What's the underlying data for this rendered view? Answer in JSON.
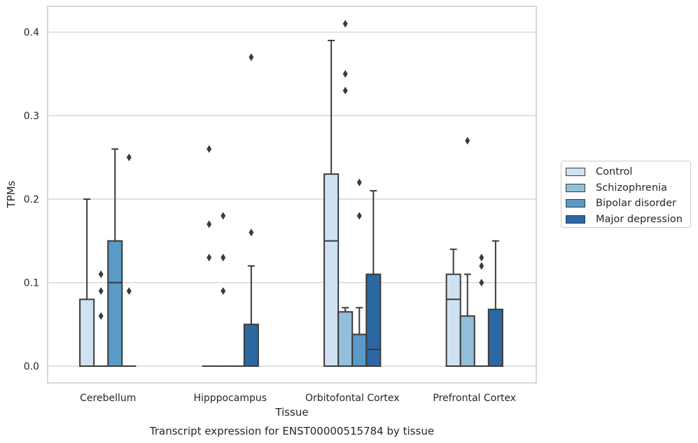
{
  "chart_data": {
    "type": "box",
    "title": "Transcript expression for ENST00000515784 by tissue",
    "xlabel": "Tissue",
    "ylabel": "TPMs",
    "ylim": [
      -0.02,
      0.43
    ],
    "yticks": [
      0.0,
      0.1,
      0.2,
      0.3,
      0.4
    ],
    "ytick_labels": [
      "0.0",
      "0.1",
      "0.2",
      "0.3",
      "0.4"
    ],
    "grid": "horizontal",
    "legend_position": "right",
    "categories": [
      "Cerebellum",
      "Hipppocampus",
      "Orbitofontal Cortex",
      "Prefrontal Cortex"
    ],
    "series": [
      {
        "name": "Control",
        "color": "#d0e1f1",
        "boxes": [
          {
            "q1": 0.0,
            "median": 0.0,
            "q3": 0.08,
            "whisker_low": 0.0,
            "whisker_high": 0.2,
            "outliers": []
          },
          {
            "q1": 0.0,
            "median": 0.0,
            "q3": 0.0,
            "whisker_low": 0.0,
            "whisker_high": 0.0,
            "outliers": [
              0.13,
              0.17,
              0.26
            ]
          },
          {
            "q1": 0.0,
            "median": 0.15,
            "q3": 0.23,
            "whisker_low": 0.0,
            "whisker_high": 0.39,
            "outliers": []
          },
          {
            "q1": 0.0,
            "median": 0.08,
            "q3": 0.11,
            "whisker_low": 0.0,
            "whisker_high": 0.14,
            "outliers": []
          }
        ]
      },
      {
        "name": "Schizophrenia",
        "color": "#94bfda",
        "boxes": [
          {
            "q1": 0.0,
            "median": 0.0,
            "q3": 0.0,
            "whisker_low": 0.0,
            "whisker_high": 0.0,
            "outliers": [
              0.06,
              0.09,
              0.11
            ]
          },
          {
            "q1": 0.0,
            "median": 0.0,
            "q3": 0.0,
            "whisker_low": 0.0,
            "whisker_high": 0.0,
            "outliers": [
              0.09,
              0.13,
              0.18
            ]
          },
          {
            "q1": 0.0,
            "median": 0.0,
            "q3": 0.065,
            "whisker_low": 0.0,
            "whisker_high": 0.07,
            "outliers": [
              0.33,
              0.35,
              0.41
            ]
          },
          {
            "q1": 0.0,
            "median": 0.0,
            "q3": 0.06,
            "whisker_low": 0.0,
            "whisker_high": 0.11,
            "outliers": [
              0.27
            ]
          }
        ]
      },
      {
        "name": "Bipolar disorder",
        "color": "#5a9ac7",
        "boxes": [
          {
            "q1": 0.0,
            "median": 0.1,
            "q3": 0.15,
            "whisker_low": 0.0,
            "whisker_high": 0.26,
            "outliers": []
          },
          {
            "q1": 0.0,
            "median": 0.0,
            "q3": 0.0,
            "whisker_low": 0.0,
            "whisker_high": 0.0,
            "outliers": []
          },
          {
            "q1": 0.0,
            "median": 0.0,
            "q3": 0.038,
            "whisker_low": 0.0,
            "whisker_high": 0.07,
            "outliers": [
              0.18,
              0.22
            ]
          },
          {
            "q1": 0.0,
            "median": 0.0,
            "q3": 0.0,
            "whisker_low": 0.0,
            "whisker_high": 0.0,
            "outliers": [
              0.1,
              0.12,
              0.13
            ]
          }
        ]
      },
      {
        "name": "Major depression",
        "color": "#2b67a2",
        "boxes": [
          {
            "q1": 0.0,
            "median": 0.0,
            "q3": 0.0,
            "whisker_low": 0.0,
            "whisker_high": 0.0,
            "outliers": [
              0.09,
              0.25
            ]
          },
          {
            "q1": 0.0,
            "median": 0.0,
            "q3": 0.05,
            "whisker_low": 0.0,
            "whisker_high": 0.12,
            "outliers": [
              0.16,
              0.37
            ]
          },
          {
            "q1": 0.0,
            "median": 0.02,
            "q3": 0.11,
            "whisker_low": 0.0,
            "whisker_high": 0.21,
            "outliers": []
          },
          {
            "q1": 0.0,
            "median": 0.0,
            "q3": 0.068,
            "whisker_low": 0.0,
            "whisker_high": 0.15,
            "outliers": []
          }
        ]
      }
    ]
  }
}
